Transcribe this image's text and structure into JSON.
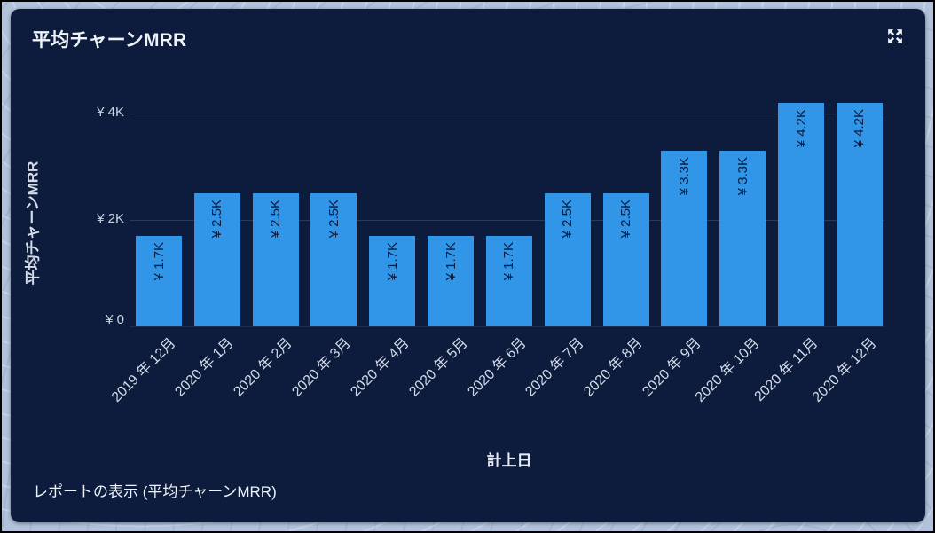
{
  "card": {
    "title": "平均チャーンMRR",
    "footer_link_label": "レポートの表示 (平均チャーンMRR)"
  },
  "icons": {
    "expand": "expand-icon"
  },
  "colors": {
    "frame_border": "#000000",
    "frame_band": "#b2c2db",
    "card_background": "#0d1b3c",
    "bar_fill": "#3296e8",
    "bar_label_text": "#0d1b3c",
    "title_text": "#eef2f9",
    "axis_text": "#c9d4e4",
    "gridline": "rgba(186,202,228,0.18)"
  },
  "chart_data": {
    "type": "bar",
    "title": "平均チャーンMRR",
    "xlabel": "計上日",
    "ylabel": "平均チャーンMRR",
    "categories": [
      "2019 年 12月",
      "2020 年 1月",
      "2020 年 2月",
      "2020 年 3月",
      "2020 年 4月",
      "2020 年 5月",
      "2020 年 6月",
      "2020 年 7月",
      "2020 年 8月",
      "2020 年 9月",
      "2020 年 10月",
      "2020 年 11月",
      "2020 年 12月"
    ],
    "values": [
      1700,
      2500,
      2500,
      2500,
      1700,
      1700,
      1700,
      2500,
      2500,
      3300,
      3300,
      4200,
      4200
    ],
    "bar_labels": [
      "¥ 1.7K",
      "¥ 2.5K",
      "¥ 2.5K",
      "¥ 2.5K",
      "¥ 1.7K",
      "¥ 1.7K",
      "¥ 1.7K",
      "¥ 2.5K",
      "¥ 2.5K",
      "¥ 3.3K",
      "¥ 3.3K",
      "¥ 4.2K",
      "¥ 4.2K"
    ],
    "y_ticks": [
      {
        "value": 4000,
        "label": "¥ 4K"
      },
      {
        "value": 2000,
        "label": "¥ 2K"
      },
      {
        "value": 0,
        "label": "¥ 0"
      }
    ],
    "ylim": [
      0,
      4400
    ],
    "grid": "horizontal",
    "legend_position": "none",
    "x_tick_rotation": -45,
    "currency": "¥"
  }
}
